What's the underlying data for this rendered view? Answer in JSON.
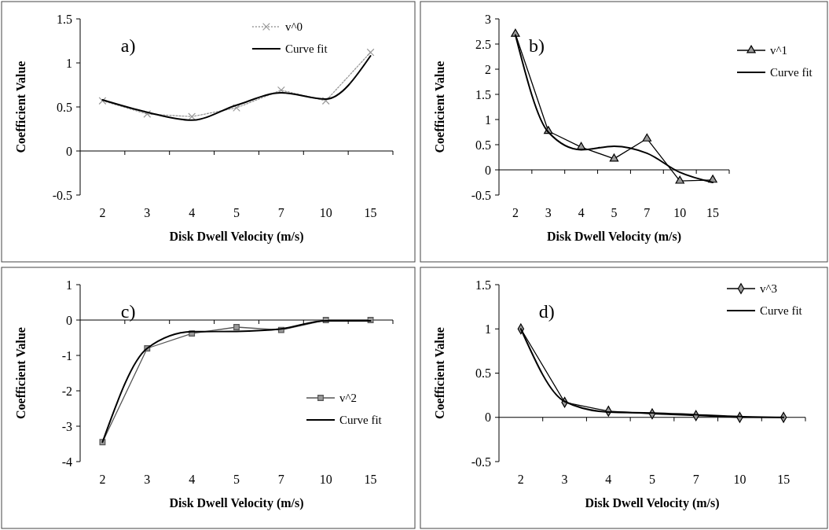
{
  "chart_data": [
    {
      "type": "line",
      "annotations": [
        "a)"
      ],
      "xlabel": "Disk Dwell Velocity (m/s)",
      "ylabel": "Coefficient Value",
      "categories": [
        "2",
        "3",
        "4",
        "5",
        "7",
        "10",
        "15"
      ],
      "ylim": [
        -0.5,
        1.5
      ],
      "yticks": [
        -0.5,
        0,
        0.5,
        1,
        1.5
      ],
      "legend": "top",
      "series": [
        {
          "name": "v^0",
          "color": "#999999",
          "marker": "cross",
          "line_style": "dotted",
          "values": [
            0.57,
            0.42,
            0.39,
            0.49,
            0.69,
            0.57,
            1.12
          ]
        },
        {
          "name": "Curve fit",
          "color": "#000000",
          "marker": "none",
          "line_style": "solid",
          "values": [
            0.58,
            0.44,
            0.35,
            0.52,
            0.66,
            0.59,
            1.08
          ]
        }
      ]
    },
    {
      "type": "line",
      "annotations": [
        "b)"
      ],
      "xlabel": "Disk Dwell Velocity (m/s)",
      "ylabel": "Coefficient Value",
      "categories": [
        "2",
        "3",
        "4",
        "5",
        "7",
        "10",
        "15"
      ],
      "ylim": [
        -0.5,
        3
      ],
      "yticks": [
        -0.5,
        0,
        0.5,
        1,
        1.5,
        2,
        2.5,
        3
      ],
      "legend": "right",
      "series": [
        {
          "name": "v^1",
          "color": "#000000",
          "marker": "triangle",
          "line_style": "solid",
          "values": [
            2.7,
            0.77,
            0.45,
            0.22,
            0.62,
            -0.22,
            -0.2
          ]
        },
        {
          "name": "Curve fit",
          "color": "#000000",
          "marker": "none",
          "line_style": "solid",
          "values": [
            2.68,
            0.75,
            0.4,
            0.47,
            0.33,
            -0.05,
            -0.25
          ]
        }
      ]
    },
    {
      "type": "line",
      "annotations": [
        "c)"
      ],
      "xlabel": "Disk Dwell Velocity (m/s)",
      "ylabel": "Coefficient Value",
      "categories": [
        "2",
        "3",
        "4",
        "5",
        "7",
        "10",
        "15"
      ],
      "ylim": [
        -4,
        1
      ],
      "yticks": [
        -4,
        -3,
        -2,
        -1,
        0,
        1
      ],
      "legend": "bottom right",
      "series": [
        {
          "name": "v^2",
          "color": "#555555",
          "marker": "square",
          "line_style": "solid",
          "values": [
            -3.45,
            -0.8,
            -0.38,
            -0.2,
            -0.28,
            0,
            0
          ]
        },
        {
          "name": "Curve fit",
          "color": "#000000",
          "marker": "none",
          "line_style": "solid",
          "values": [
            -3.45,
            -0.8,
            -0.33,
            -0.32,
            -0.25,
            -0.02,
            -0.02
          ]
        }
      ]
    },
    {
      "type": "line",
      "annotations": [
        "d)"
      ],
      "xlabel": "Disk Dwell Velocity (m/s)",
      "ylabel": "Coefficient Value",
      "categories": [
        "2",
        "3",
        "4",
        "5",
        "7",
        "10",
        "15"
      ],
      "ylim": [
        -0.5,
        1.5
      ],
      "yticks": [
        -0.5,
        0,
        0.5,
        1,
        1.5
      ],
      "legend": "top right",
      "series": [
        {
          "name": "v^3",
          "color": "#000000",
          "marker": "diamond",
          "line_style": "solid",
          "values": [
            1.0,
            0.17,
            0.07,
            0.04,
            0.02,
            0,
            0
          ]
        },
        {
          "name": "Curve fit",
          "color": "#000000",
          "marker": "none",
          "line_style": "solid",
          "values": [
            1.0,
            0.18,
            0.06,
            0.05,
            0.03,
            0.01,
            0
          ]
        }
      ]
    }
  ]
}
